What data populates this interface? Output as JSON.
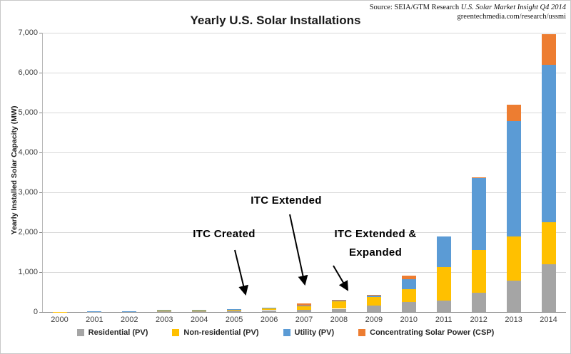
{
  "source": {
    "line1_prefix": "Source: SEIA/GTM Research ",
    "line1_italic": "U.S. Solar Market Insight Q4 2014",
    "line2": "greentechmedia.com/research/ussmi"
  },
  "chart_data": {
    "type": "bar",
    "stacked": true,
    "title": "Yearly U.S. Solar Installations",
    "xlabel": "",
    "ylabel": "Yearly Installed Solar Capacity (MW)",
    "ylim": [
      0,
      7000
    ],
    "ytick_step": 1000,
    "grid": true,
    "legend_position": "bottom",
    "categories": [
      "2000",
      "2001",
      "2002",
      "2003",
      "2004",
      "2005",
      "2006",
      "2007",
      "2008",
      "2009",
      "2010",
      "2011",
      "2012",
      "2013",
      "2014"
    ],
    "series": [
      {
        "name": "Residential (PV)",
        "color": "#a5a5a5",
        "values": [
          2,
          5,
          12,
          20,
          25,
          35,
          45,
          60,
          80,
          160,
          250,
          280,
          480,
          780,
          1200
        ]
      },
      {
        "name": "Non-residential (PV)",
        "color": "#ffc000",
        "values": [
          2,
          5,
          10,
          25,
          33,
          44,
          60,
          90,
          180,
          210,
          320,
          850,
          1080,
          1120,
          1050
        ]
      },
      {
        "name": "Utility (PV)",
        "color": "#5b9bd5",
        "values": [
          0,
          1,
          1,
          1,
          2,
          2,
          3,
          10,
          30,
          55,
          250,
          770,
          1800,
          2880,
          3950
        ]
      },
      {
        "name": "Concentrating Solar Power (CSP)",
        "color": "#ed7d31",
        "values": [
          0,
          0,
          0,
          0,
          0,
          0,
          0,
          64,
          10,
          10,
          100,
          0,
          10,
          410,
          770
        ]
      }
    ],
    "annotations": [
      {
        "text": "ITC Created",
        "target_year": "2005"
      },
      {
        "text": "ITC Extended",
        "target_year": "2007"
      },
      {
        "text": "ITC Extended &\nExpanded",
        "target_year": "2008"
      }
    ]
  }
}
